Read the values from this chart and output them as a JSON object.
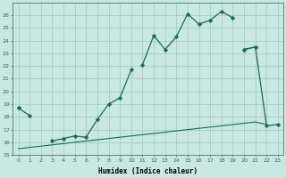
{
  "xlabel": "Humidex (Indice chaleur)",
  "bg_color": "#c8e8e0",
  "grid_color": "#a0c8c0",
  "line_color": "#1a6b5a",
  "x_values": [
    0,
    1,
    2,
    3,
    4,
    5,
    6,
    7,
    8,
    9,
    10,
    11,
    12,
    13,
    14,
    15,
    16,
    17,
    18,
    19,
    20,
    21,
    22,
    23
  ],
  "line_upper": [
    18.7,
    18.1,
    null,
    null,
    null,
    null,
    null,
    null,
    null,
    null,
    null,
    22.1,
    24.4,
    23.3,
    24.3,
    26.1,
    25.3,
    25.6,
    26.3,
    25.8,
    null,
    null,
    null,
    null
  ],
  "line_mid": [
    18.7,
    null,
    null,
    null,
    null,
    null,
    null,
    null,
    19.0,
    19.5,
    21.7,
    22.1,
    null,
    null,
    null,
    null,
    null,
    null,
    null,
    null,
    23.3,
    23.5,
    17.3,
    null
  ],
  "line_mid2": [
    null,
    null,
    null,
    16.1,
    16.3,
    16.5,
    16.4,
    17.8,
    19.0,
    19.5,
    21.7,
    null,
    null,
    null,
    null,
    null,
    null,
    null,
    null,
    null,
    23.3,
    23.5,
    null,
    null
  ],
  "line_lower": [
    15.5,
    15.6,
    15.7,
    15.8,
    15.9,
    16.0,
    16.1,
    16.2,
    16.3,
    16.4,
    16.5,
    16.6,
    16.7,
    16.8,
    16.9,
    17.0,
    17.1,
    17.2,
    17.3,
    17.4,
    17.5,
    17.6,
    17.4,
    null
  ],
  "line_straight": [
    18.7,
    19.1,
    null,
    null,
    null,
    null,
    null,
    null,
    null,
    null,
    null,
    null,
    null,
    null,
    null,
    null,
    null,
    null,
    null,
    null,
    23.3,
    23.5,
    17.3,
    17.4
  ],
  "ylim": [
    15,
    27
  ],
  "xlim_min": -0.5,
  "xlim_max": 23.5,
  "yticks": [
    15,
    16,
    17,
    18,
    19,
    20,
    21,
    22,
    23,
    24,
    25,
    26
  ],
  "xticks": [
    0,
    1,
    2,
    3,
    4,
    5,
    6,
    7,
    8,
    9,
    10,
    11,
    12,
    13,
    14,
    15,
    16,
    17,
    18,
    19,
    20,
    21,
    22,
    23
  ]
}
